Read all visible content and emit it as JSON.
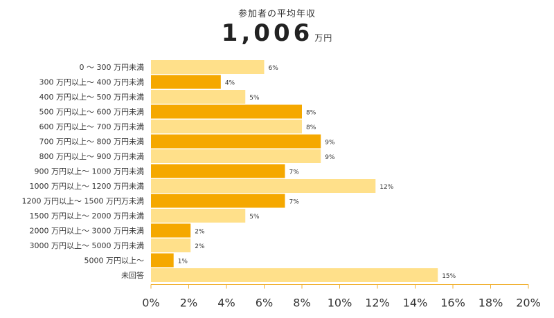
{
  "header": {
    "title": "参加者の平均年収",
    "average_value": "1,006",
    "average_unit": "万円"
  },
  "colors": {
    "bar_light": "#ffe08a",
    "bar_dark": "#f5a800",
    "axis": "#f0b030",
    "text": "#333333"
  },
  "chart_data": {
    "type": "bar",
    "orientation": "horizontal",
    "categories": [
      "0 ～ 300 万円未満",
      "300 万円以上～ 400 万円未満",
      "400 万円以上～ 500 万円未満",
      "500 万円以上～ 600 万円未満",
      "600 万円以上～ 700 万円未満",
      "700 万円以上～ 800 万円未満",
      "800 万円以上～ 900 万円未満",
      "900 万円以上～ 1000 万円未満",
      "1000 万円以上～ 1200 万円未満",
      "1200 万円以上～ 1500 万円万未満",
      "1500 万円以上～ 2000 万円未満",
      "2000 万円以上～ 3000 万円未満",
      "3000 万円以上～ 5000 万円未満",
      "5000 万円以上～",
      "未回答"
    ],
    "values": [
      6,
      3.7,
      5,
      8,
      8,
      9,
      9,
      7.1,
      11.9,
      7.1,
      5,
      2.1,
      2.1,
      1.2,
      15.2
    ],
    "value_labels": [
      "6%",
      "4%",
      "5%",
      "8%",
      "8%",
      "9%",
      "9%",
      "7%",
      "12%",
      "7%",
      "5%",
      "2%",
      "2%",
      "1%",
      "15%"
    ],
    "xlim": [
      0,
      20
    ],
    "x_ticks": [
      0,
      2,
      4,
      6,
      8,
      10,
      12,
      14,
      16,
      18,
      20
    ],
    "x_tick_labels": [
      "0%",
      "2%",
      "4%",
      "6%",
      "8%",
      "10%",
      "12%",
      "14%",
      "16%",
      "18%",
      "20%"
    ],
    "grid": false,
    "legend": "none"
  }
}
